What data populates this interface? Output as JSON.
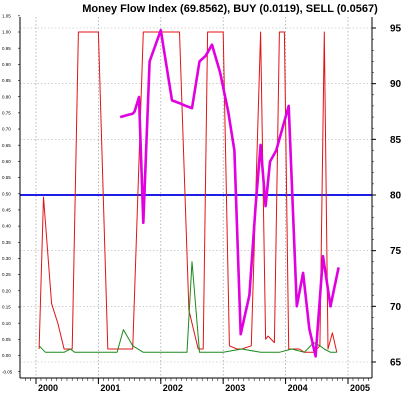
{
  "chart_data": {
    "type": "line",
    "title": "Money Flow Index (69.8562), BUY (0.0119), SELL (0.0567)",
    "xlabel": "",
    "ylabel": "",
    "x_range": [
      1999.83,
      2005.5
    ],
    "x_ticks": [
      "2000",
      "2001",
      "2002",
      "2003",
      "2004",
      "2005"
    ],
    "left_axis": {
      "range": [
        -0.05,
        1.05
      ],
      "ticks": [
        "-0.05",
        "0.00",
        "0.05",
        "0.10",
        "0.15",
        "0.20",
        "0.25",
        "0.30",
        "0.35",
        "0.40",
        "0.45",
        "0.50",
        "0.55",
        "0.60",
        "0.65",
        "0.70",
        "0.75",
        "0.80",
        "0.85",
        "0.90",
        "0.95",
        "1.00",
        "1.05"
      ]
    },
    "right_axis": {
      "range": [
        63.1,
        97.0
      ],
      "ticks": [
        "65",
        "70",
        "75",
        "80",
        "85",
        "90",
        "95"
      ]
    },
    "grid": true,
    "legend": "none",
    "series": [
      {
        "axis": "left",
        "color": "#e11414",
        "x": [
          2000.05,
          2000.12,
          2000.25,
          2000.35,
          2000.45,
          2000.58,
          2000.68,
          2000.78,
          2001.0,
          2001.15,
          2001.3,
          2001.55,
          2001.72,
          2001.92,
          2002.05,
          2002.3,
          2002.45,
          2002.6,
          2002.68,
          2002.75,
          2002.85,
          2002.92,
          2003.0,
          2003.1,
          2003.22,
          2003.3,
          2003.45,
          2003.6,
          2003.68,
          2003.72,
          2003.82,
          2003.9,
          2003.98,
          2004.05,
          2004.12,
          2004.22,
          2004.3,
          2004.45,
          2004.55,
          2004.62,
          2004.68,
          2004.75,
          2004.82
        ],
        "y": [
          0.02,
          0.49,
          0.16,
          0.1,
          0.02,
          0.02,
          1.0,
          1.0,
          1.0,
          0.02,
          0.02,
          0.02,
          1.0,
          1.0,
          1.0,
          1.0,
          0.14,
          0.02,
          0.02,
          1.0,
          1.0,
          1.0,
          1.0,
          0.03,
          0.02,
          0.02,
          0.03,
          1.0,
          0.05,
          0.06,
          0.04,
          1.0,
          1.0,
          0.02,
          0.02,
          0.02,
          0.01,
          0.01,
          0.03,
          1.0,
          0.02,
          0.07,
          0.01
        ]
      },
      {
        "axis": "left",
        "color": "#1a8a1a",
        "x": [
          2000.05,
          2000.15,
          2000.3,
          2000.45,
          2000.55,
          2000.62,
          2000.72,
          2000.85,
          2001.0,
          2001.15,
          2001.3,
          2001.4,
          2001.55,
          2001.72,
          2001.9,
          2002.1,
          2002.3,
          2002.42,
          2002.5,
          2002.62,
          2002.8,
          2003.0,
          2003.3,
          2003.6,
          2003.9,
          2004.1,
          2004.3,
          2004.45,
          2004.55,
          2004.62,
          2004.72,
          2004.82
        ],
        "y": [
          0.03,
          0.01,
          0.01,
          0.01,
          0.02,
          0.01,
          0.01,
          0.01,
          0.01,
          0.01,
          0.01,
          0.08,
          0.03,
          0.01,
          0.01,
          0.01,
          0.01,
          0.01,
          0.29,
          0.01,
          0.01,
          0.01,
          0.02,
          0.01,
          0.01,
          0.02,
          0.01,
          0.04,
          0.03,
          0.02,
          0.01,
          0.01
        ]
      },
      {
        "axis": "right",
        "color": "#e000e0",
        "x": [
          2001.35,
          2001.48,
          2001.55,
          2001.58,
          2001.65,
          2001.72,
          2001.82,
          2002.0,
          2002.18,
          2002.32,
          2002.4,
          2002.5,
          2002.62,
          2002.72,
          2002.82,
          2002.95,
          2003.08,
          2003.18,
          2003.28,
          2003.42,
          2003.52,
          2003.6,
          2003.68,
          2003.75,
          2003.85,
          2004.05,
          2004.18,
          2004.28,
          2004.38,
          2004.48,
          2004.6,
          2004.72,
          2004.85
        ],
        "y": [
          87.0,
          87.2,
          87.3,
          87.5,
          88.8,
          77.5,
          92.0,
          94.8,
          88.5,
          88.2,
          88.0,
          87.8,
          92.0,
          92.5,
          93.5,
          91.0,
          87.5,
          84.0,
          67.5,
          71.0,
          79.0,
          84.5,
          79.0,
          83.0,
          84.0,
          88.0,
          70.0,
          73.0,
          68.0,
          65.5,
          74.5,
          70.0,
          73.5
        ]
      }
    ],
    "reference_lines": [
      {
        "axis": "right",
        "value": 80,
        "color": "#1e1ee6"
      }
    ]
  }
}
